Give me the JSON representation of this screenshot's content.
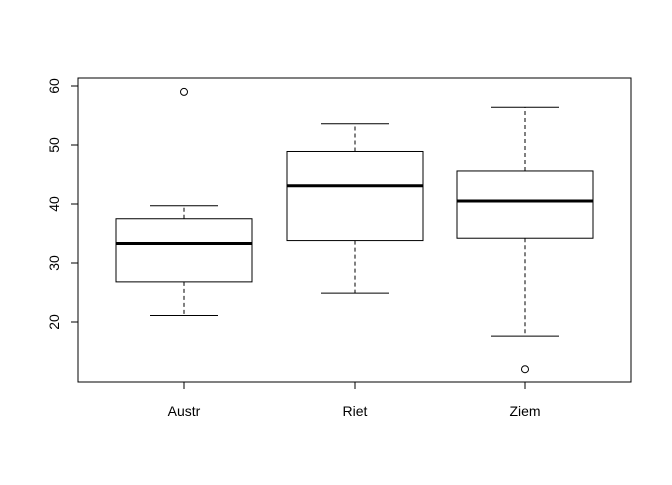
{
  "chart_data": {
    "type": "boxplot",
    "title": "",
    "xlabel": "",
    "ylabel": "",
    "categories": [
      "Austr",
      "Riet",
      "Ziem"
    ],
    "ylim": [
      10,
      60
    ],
    "y_ticks": [
      20,
      30,
      40,
      50,
      60
    ],
    "grid": false,
    "legend": "none",
    "boxes": [
      {
        "category": "Austr",
        "whisker_low": 21.1,
        "q1": 26.8,
        "median": 33.3,
        "q3": 37.5,
        "whisker_high": 39.7,
        "outliers": [
          59.0
        ]
      },
      {
        "category": "Riet",
        "whisker_low": 24.9,
        "q1": 33.8,
        "median": 43.1,
        "q3": 48.9,
        "whisker_high": 53.6,
        "outliers": []
      },
      {
        "category": "Ziem",
        "whisker_low": 17.6,
        "q1": 34.2,
        "median": 40.5,
        "q3": 45.6,
        "whisker_high": 56.4,
        "outliers": [
          12.0
        ]
      }
    ]
  }
}
